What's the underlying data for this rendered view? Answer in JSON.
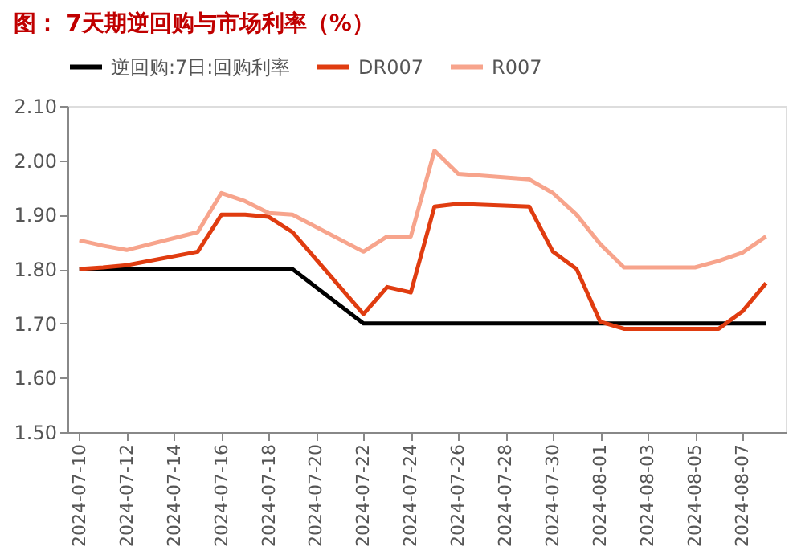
{
  "chart_data": {
    "type": "line",
    "title": "图：  7天期逆回购与市场利率（%）",
    "x": [
      "2024-07-10",
      "2024-07-11",
      "2024-07-12",
      "2024-07-15",
      "2024-07-16",
      "2024-07-17",
      "2024-07-18",
      "2024-07-19",
      "2024-07-22",
      "2024-07-23",
      "2024-07-24",
      "2024-07-25",
      "2024-07-26",
      "2024-07-29",
      "2024-07-30",
      "2024-07-31",
      "2024-08-01",
      "2024-08-02",
      "2024-08-05",
      "2024-08-06",
      "2024-08-07",
      "2024-08-08"
    ],
    "series": [
      {
        "name": "逆回购:7日:回购利率",
        "color": "#000000",
        "values": [
          1.8,
          1.8,
          1.8,
          1.8,
          1.8,
          1.8,
          1.8,
          1.8,
          1.7,
          1.7,
          1.7,
          1.7,
          1.7,
          1.7,
          1.7,
          1.7,
          1.7,
          1.7,
          1.7,
          1.7,
          1.7,
          1.7
        ]
      },
      {
        "name": "DR007",
        "color": "#e03c10",
        "values": [
          1.8,
          1.803,
          1.807,
          1.832,
          1.9,
          1.9,
          1.896,
          1.868,
          1.717,
          1.767,
          1.757,
          1.915,
          1.92,
          1.915,
          1.832,
          1.8,
          1.703,
          1.69,
          1.69,
          1.69,
          1.722,
          1.774
        ]
      },
      {
        "name": "R007",
        "color": "#f7a48c",
        "values": [
          1.853,
          1.843,
          1.835,
          1.868,
          1.94,
          1.925,
          1.903,
          1.9,
          1.832,
          1.86,
          1.86,
          2.018,
          1.975,
          1.965,
          1.94,
          1.9,
          1.846,
          1.803,
          1.803,
          1.815,
          1.83,
          1.86
        ]
      }
    ],
    "xlim": [
      "2024-07-09T12:00",
      "2024-08-08T20:00"
    ],
    "xticks": [
      "2024-07-10",
      "2024-07-12",
      "2024-07-14",
      "2024-07-16",
      "2024-07-18",
      "2024-07-20",
      "2024-07-22",
      "2024-07-24",
      "2024-07-26",
      "2024-07-28",
      "2024-07-30",
      "2024-08-01",
      "2024-08-03",
      "2024-08-05",
      "2024-08-07"
    ],
    "ylim": [
      1.5,
      2.1
    ],
    "yticks": [
      {
        "value": 1.5,
        "label": "1.50"
      },
      {
        "value": 1.6,
        "label": "1.60"
      },
      {
        "value": 1.7,
        "label": "1.70"
      },
      {
        "value": 1.8,
        "label": "1.80"
      },
      {
        "value": 1.9,
        "label": "1.90"
      },
      {
        "value": 2.0,
        "label": "2.00"
      },
      {
        "value": 2.1,
        "label": "2.10"
      }
    ],
    "grid": false,
    "legend": "top",
    "marker": "none",
    "line_style": "solid"
  }
}
